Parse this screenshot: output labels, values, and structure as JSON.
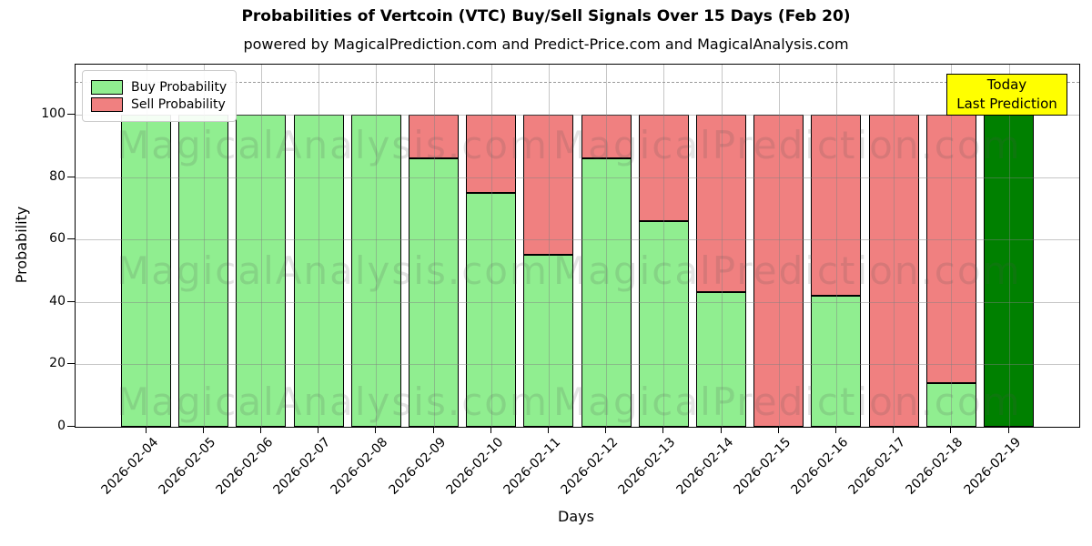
{
  "header": {
    "title": "Probabilities of Vertcoin (VTC) Buy/Sell Signals Over 15 Days (Feb 20)",
    "subtitle": "powered by MagicalPrediction.com and Predict-Price.com and MagicalAnalysis.com"
  },
  "legend": {
    "buy_label": "Buy Probability",
    "sell_label": "Sell Probability"
  },
  "annotation": {
    "line1": "Today",
    "line2": "Last Prediction"
  },
  "axes": {
    "ylabel": "Probability",
    "xlabel": "Days"
  },
  "watermarks": {
    "left": "MagicalAnalysis.com",
    "right": "MagicalPrediction.com"
  },
  "colors": {
    "buy": "#90EE90",
    "sell": "#F08080",
    "today": "#008000",
    "annotation_bg": "#FFFF00",
    "grid": "#b0b0b0"
  },
  "chart_data": {
    "type": "bar",
    "stacked": true,
    "title": "Probabilities of Vertcoin (VTC) Buy/Sell Signals Over 15 Days (Feb 20)",
    "xlabel": "Days",
    "ylabel": "Probability",
    "categories": [
      "2026-02-04",
      "2026-02-05",
      "2026-02-06",
      "2026-02-07",
      "2026-02-08",
      "2026-02-09",
      "2026-02-10",
      "2026-02-11",
      "2026-02-12",
      "2026-02-13",
      "2026-02-14",
      "2026-02-15",
      "2026-02-16",
      "2026-02-17",
      "2026-02-18",
      "2026-02-19"
    ],
    "series": [
      {
        "name": "Buy Probability",
        "color": "#90EE90",
        "values": [
          100,
          100,
          100,
          100,
          100,
          86,
          75,
          55,
          86,
          66,
          43,
          0,
          42,
          0,
          14,
          100
        ]
      },
      {
        "name": "Sell Probability",
        "color": "#F08080",
        "values": [
          0,
          0,
          0,
          0,
          0,
          14,
          25,
          45,
          14,
          34,
          57,
          100,
          58,
          100,
          86,
          0
        ]
      }
    ],
    "today_index": 15,
    "today_color": "#008000",
    "ylim": [
      0,
      116
    ],
    "yticks": [
      0,
      20,
      40,
      60,
      80,
      100
    ],
    "grid": true,
    "legend_position": "upper left",
    "dashed_line_y": 110.5
  }
}
